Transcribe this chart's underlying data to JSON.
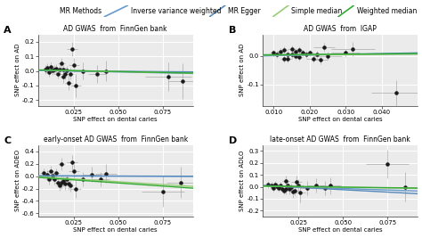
{
  "panels": [
    {
      "label": "A",
      "title": "AD GWAS  from  FinnGen bank",
      "ylabel": "SNP effect on AD",
      "xlabel": "SNP effect on dental caries",
      "xlim": [
        0.005,
        0.092
      ],
      "ylim": [
        -0.24,
        0.25
      ],
      "xticks": [
        0.025,
        0.05,
        0.075
      ],
      "yticks": [
        -0.2,
        -0.1,
        0.0,
        0.1,
        0.2
      ],
      "points_x": [
        0.009,
        0.01,
        0.011,
        0.012,
        0.013,
        0.014,
        0.015,
        0.016,
        0.017,
        0.018,
        0.019,
        0.019,
        0.02,
        0.021,
        0.022,
        0.023,
        0.024,
        0.025,
        0.026,
        0.03,
        0.038,
        0.043,
        0.078,
        0.086
      ],
      "points_y": [
        0.01,
        0.02,
        -0.01,
        0.03,
        0.005,
        0.01,
        0.015,
        -0.02,
        0.01,
        0.05,
        -0.04,
        0.01,
        -0.02,
        0.005,
        -0.08,
        -0.02,
        0.15,
        0.04,
        -0.1,
        0.0,
        -0.02,
        0.0,
        -0.04,
        -0.07
      ],
      "xerr": [
        0.002,
        0.002,
        0.002,
        0.002,
        0.002,
        0.002,
        0.002,
        0.002,
        0.002,
        0.002,
        0.002,
        0.002,
        0.002,
        0.002,
        0.002,
        0.002,
        0.003,
        0.003,
        0.003,
        0.005,
        0.005,
        0.007,
        0.013,
        0.008
      ],
      "yerr": [
        0.03,
        0.03,
        0.03,
        0.03,
        0.03,
        0.03,
        0.03,
        0.03,
        0.03,
        0.04,
        0.04,
        0.03,
        0.04,
        0.03,
        0.05,
        0.04,
        0.05,
        0.05,
        0.08,
        0.06,
        0.06,
        0.07,
        0.1,
        0.12
      ],
      "ivw_slope": -0.25,
      "ivw_intercept": 0.005,
      "egger_slope": -0.1,
      "egger_intercept": 0.002,
      "sm_slope": -0.25,
      "sm_intercept": 0.007,
      "wm_slope": -0.25,
      "wm_intercept": 0.008,
      "line_x_start": 0.005,
      "line_x_end": 0.092
    },
    {
      "label": "B",
      "title": "AD GWAS  from  IGAP",
      "ylabel": "SNP effect on AD",
      "xlabel": "SNP effect on dental caries",
      "xlim": [
        0.007,
        0.05
      ],
      "ylim": [
        -0.175,
        0.075
      ],
      "xticks": [
        0.01,
        0.02,
        0.03,
        0.04
      ],
      "yticks": [
        -0.1,
        0.0
      ],
      "points_x": [
        0.01,
        0.011,
        0.012,
        0.013,
        0.013,
        0.014,
        0.014,
        0.015,
        0.015,
        0.016,
        0.016,
        0.017,
        0.017,
        0.018,
        0.019,
        0.02,
        0.021,
        0.022,
        0.023,
        0.024,
        0.025,
        0.03,
        0.032,
        0.044
      ],
      "points_y": [
        0.01,
        0.005,
        0.015,
        -0.01,
        0.02,
        0.005,
        -0.01,
        0.025,
        0.005,
        0.015,
        0.0,
        0.02,
        -0.005,
        0.01,
        0.005,
        0.01,
        -0.01,
        0.005,
        -0.015,
        0.03,
        0.0,
        0.01,
        0.025,
        -0.13
      ],
      "xerr": [
        0.001,
        0.001,
        0.001,
        0.001,
        0.001,
        0.001,
        0.001,
        0.001,
        0.001,
        0.001,
        0.001,
        0.001,
        0.001,
        0.001,
        0.001,
        0.001,
        0.002,
        0.002,
        0.002,
        0.003,
        0.004,
        0.004,
        0.006,
        0.007
      ],
      "yerr": [
        0.012,
        0.012,
        0.012,
        0.012,
        0.012,
        0.012,
        0.012,
        0.012,
        0.012,
        0.012,
        0.012,
        0.012,
        0.012,
        0.012,
        0.012,
        0.012,
        0.012,
        0.012,
        0.015,
        0.015,
        0.015,
        0.015,
        0.025,
        0.045
      ],
      "ivw_slope": 0.1,
      "ivw_intercept": 0.002,
      "egger_slope": 0.25,
      "egger_intercept": -0.002,
      "sm_slope": 0.08,
      "sm_intercept": 0.002,
      "wm_slope": 0.1,
      "wm_intercept": 0.003,
      "line_x_start": 0.007,
      "line_x_end": 0.05
    },
    {
      "label": "C",
      "title": "early-onset AD GWAS  from  FinnGen bank",
      "ylabel": "SNP effect on ADEO",
      "xlabel": "SNP effect on dental caries",
      "xlim": [
        0.005,
        0.092
      ],
      "ylim": [
        -0.65,
        0.5
      ],
      "xticks": [
        0.025,
        0.05,
        0.075
      ],
      "yticks": [
        -0.6,
        -0.4,
        -0.2,
        0.0,
        0.2,
        0.4
      ],
      "points_x": [
        0.008,
        0.01,
        0.011,
        0.012,
        0.013,
        0.014,
        0.015,
        0.016,
        0.017,
        0.018,
        0.018,
        0.019,
        0.02,
        0.021,
        0.022,
        0.023,
        0.024,
        0.025,
        0.026,
        0.03,
        0.035,
        0.04,
        0.043,
        0.075,
        0.085
      ],
      "points_y": [
        0.05,
        0.02,
        -0.05,
        0.08,
        0.01,
        -0.05,
        0.05,
        -0.1,
        -0.15,
        0.2,
        -0.1,
        -0.08,
        -0.12,
        -0.05,
        -0.12,
        -0.15,
        0.22,
        0.08,
        -0.2,
        -0.05,
        0.03,
        -0.05,
        0.04,
        -0.25,
        -0.1
      ],
      "xerr": [
        0.002,
        0.002,
        0.002,
        0.002,
        0.002,
        0.002,
        0.002,
        0.002,
        0.002,
        0.002,
        0.002,
        0.002,
        0.002,
        0.002,
        0.002,
        0.002,
        0.003,
        0.003,
        0.003,
        0.004,
        0.005,
        0.005,
        0.006,
        0.012,
        0.008
      ],
      "yerr": [
        0.08,
        0.08,
        0.08,
        0.08,
        0.08,
        0.08,
        0.08,
        0.08,
        0.08,
        0.1,
        0.1,
        0.08,
        0.1,
        0.08,
        0.1,
        0.1,
        0.12,
        0.12,
        0.15,
        0.12,
        0.12,
        0.12,
        0.15,
        0.25,
        0.25
      ],
      "ivw_slope": -0.1,
      "ivw_intercept": 0.005,
      "egger_slope": -0.05,
      "egger_intercept": 0.003,
      "sm_slope": -1.8,
      "sm_intercept": 0.0,
      "wm_slope": -2.0,
      "wm_intercept": -0.01,
      "line_x_start": 0.005,
      "line_x_end": 0.092
    },
    {
      "label": "D",
      "title": "late-onset AD GWAS  from  FinnGen bank",
      "ylabel": "SNP effect on ADLO",
      "xlabel": "SNP effect on dental caries",
      "xlim": [
        0.005,
        0.092
      ],
      "ylim": [
        -0.25,
        0.35
      ],
      "xticks": [
        0.025,
        0.05,
        0.075
      ],
      "yticks": [
        -0.2,
        -0.1,
        0.0,
        0.1,
        0.2,
        0.3
      ],
      "points_x": [
        0.008,
        0.01,
        0.011,
        0.012,
        0.013,
        0.014,
        0.015,
        0.016,
        0.017,
        0.018,
        0.018,
        0.019,
        0.02,
        0.021,
        0.022,
        0.023,
        0.024,
        0.025,
        0.026,
        0.03,
        0.035,
        0.04,
        0.043,
        0.075,
        0.085
      ],
      "points_y": [
        0.02,
        0.01,
        -0.01,
        0.02,
        0.005,
        -0.01,
        0.01,
        -0.02,
        -0.03,
        0.05,
        -0.02,
        0.01,
        -0.02,
        0.0,
        -0.04,
        -0.03,
        0.04,
        0.01,
        -0.05,
        -0.01,
        0.01,
        -0.01,
        0.01,
        0.19,
        0.0
      ],
      "xerr": [
        0.002,
        0.002,
        0.002,
        0.002,
        0.002,
        0.002,
        0.002,
        0.002,
        0.002,
        0.002,
        0.002,
        0.002,
        0.002,
        0.002,
        0.002,
        0.002,
        0.003,
        0.003,
        0.003,
        0.004,
        0.005,
        0.005,
        0.006,
        0.012,
        0.008
      ],
      "yerr": [
        0.03,
        0.03,
        0.03,
        0.03,
        0.03,
        0.03,
        0.03,
        0.03,
        0.03,
        0.04,
        0.04,
        0.03,
        0.04,
        0.03,
        0.05,
        0.04,
        0.05,
        0.05,
        0.08,
        0.06,
        0.06,
        0.06,
        0.07,
        0.12,
        0.12
      ],
      "ivw_slope": -0.5,
      "ivw_intercept": 0.01,
      "egger_slope": -0.8,
      "egger_intercept": 0.015,
      "sm_slope": -0.2,
      "sm_intercept": 0.005,
      "wm_slope": -0.2,
      "wm_intercept": 0.007,
      "line_x_start": 0.005,
      "line_x_end": 0.092
    }
  ],
  "bg_color": "#ebebeb",
  "grid_color": "#ffffff",
  "point_color": "#1a1a1a",
  "error_color": "#999999",
  "ivw_color": "#6699cc",
  "egger_color": "#5588bb",
  "sm_color": "#99cc77",
  "wm_color": "#33aa33"
}
